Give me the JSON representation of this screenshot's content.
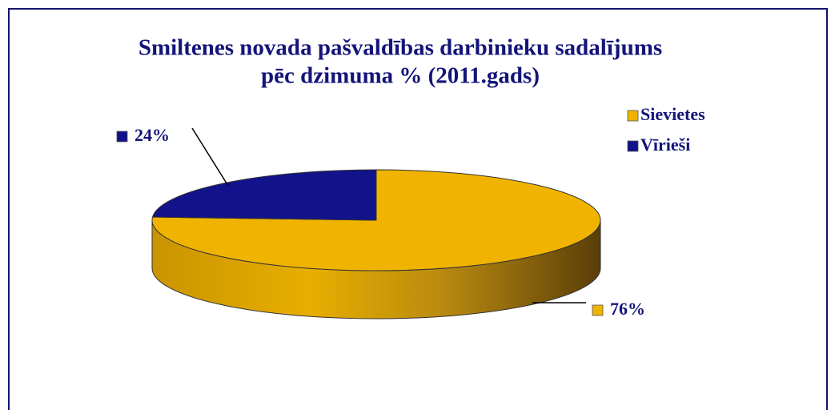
{
  "chart_data": {
    "type": "pie",
    "title": [
      "Smiltenes novada pašvaldības darbinieku sadalījums",
      "pēc dzimuma   % (2011.gads)"
    ],
    "categories": [
      "Sievietes",
      "Vīrieši"
    ],
    "values": [
      76,
      24
    ],
    "value_labels": [
      "76%",
      "24%"
    ],
    "colors": [
      "#f0b400",
      "#12128a"
    ],
    "legend": "right"
  }
}
